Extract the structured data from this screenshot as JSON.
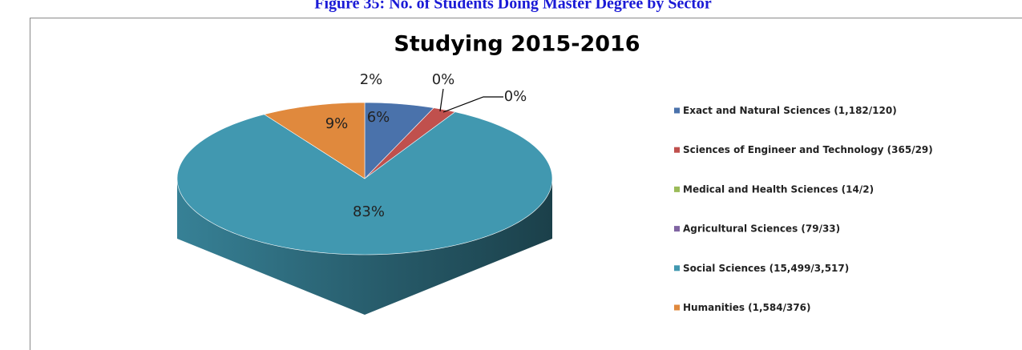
{
  "chart_data": {
    "type": "pie",
    "caption": "Figure 35: No. of Students Doing Master Degree by Sector",
    "title": "Studying 2015-2016",
    "categories": [
      "Exact and Natural Sciences (1,182/120)",
      "Sciences of Engineer and Technology (365/29)",
      "Medical and Health Sciences (14/2)",
      "Agricultural Sciences (79/33)",
      "Social Sciences (15,499/3,517)",
      "Humanities (1,584/376)"
    ],
    "values": [
      6,
      2,
      0,
      0,
      83,
      9
    ],
    "value_labels": [
      "6%",
      "2%",
      "0%",
      "0%",
      "83%",
      "9%"
    ],
    "colors": [
      "#4a72ab",
      "#c0504d",
      "#9bbb59",
      "#8064a2",
      "#4198b0",
      "#e0893d"
    ],
    "legend": "right"
  }
}
